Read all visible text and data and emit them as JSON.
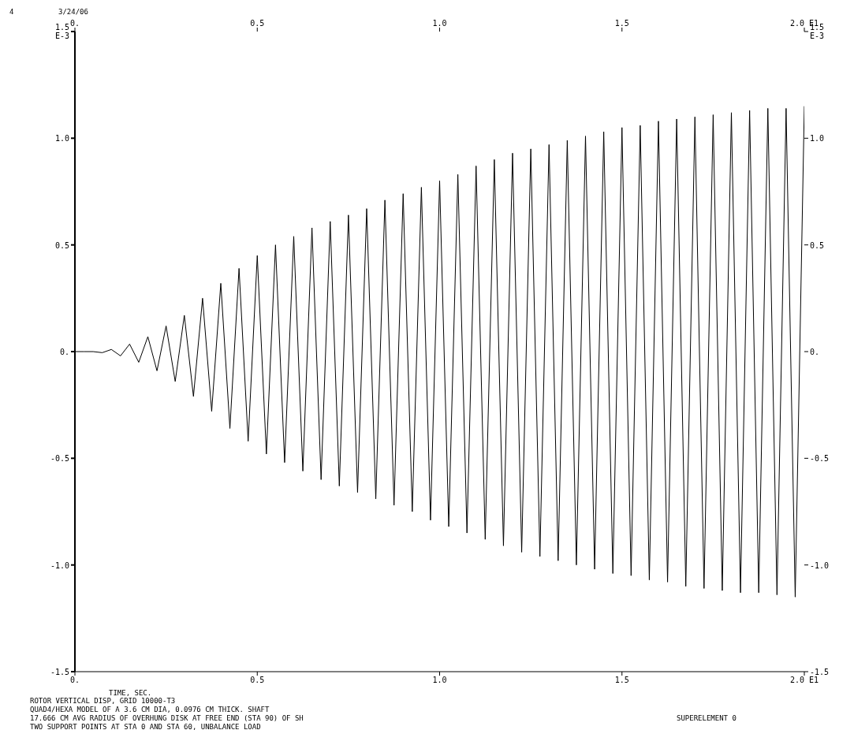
{
  "chart_data": {
    "type": "line",
    "title": "ROTOR VERTICAL DISP, GRID 10000-T3",
    "xlabel": "TIME, SEC.",
    "annotations": [
      "4",
      "3/24/06",
      "QUAD4/HEXA MODEL OF A 3.6 CM DIA, 0.0976 CM THICK. SHAFT",
      "17.666 CM AVG RADIUS OF OVERHUNG DISK AT FREE END (STA 90) OF SH",
      "TWO SUPPORT POINTS AT STA 0 AND STA 60, UNBALANCE LOAD",
      "SUPERELEMENT 0"
    ],
    "x": [
      0,
      0.025,
      0.05,
      0.075,
      0.1,
      0.125,
      0.15,
      0.175,
      0.2,
      0.225,
      0.25,
      0.275,
      0.3,
      0.325,
      0.35,
      0.375,
      0.4,
      0.425,
      0.45,
      0.475,
      0.5,
      0.525,
      0.55,
      0.575,
      0.6,
      0.625,
      0.65,
      0.675,
      0.7,
      0.725,
      0.75,
      0.775,
      0.8,
      0.825,
      0.85,
      0.875,
      0.9,
      0.925,
      0.95,
      0.975,
      1.0,
      1.025,
      1.05,
      1.075,
      1.1,
      1.125,
      1.15,
      1.175,
      1.2,
      1.225,
      1.25,
      1.275,
      1.3,
      1.325,
      1.35,
      1.375,
      1.4,
      1.425,
      1.45,
      1.475,
      1.5,
      1.525,
      1.55,
      1.575,
      1.6,
      1.625,
      1.65,
      1.675,
      1.7,
      1.725,
      1.75,
      1.775,
      1.8,
      1.825,
      1.85,
      1.875,
      1.9,
      1.925,
      1.95,
      1.975,
      2.0
    ],
    "series": [
      {
        "color": "#000000",
        "values": [
          0,
          0,
          0,
          -0.005,
          0.01,
          -0.02,
          0.035,
          -0.05,
          0.07,
          -0.09,
          0.12,
          -0.14,
          0.17,
          -0.21,
          0.25,
          -0.28,
          0.32,
          -0.36,
          0.39,
          -0.42,
          0.45,
          -0.48,
          0.5,
          -0.52,
          0.54,
          -0.56,
          0.58,
          -0.6,
          0.61,
          -0.63,
          0.64,
          -0.66,
          0.67,
          -0.69,
          0.71,
          -0.72,
          0.74,
          -0.75,
          0.77,
          -0.79,
          0.8,
          -0.82,
          0.83,
          -0.85,
          0.87,
          -0.88,
          0.9,
          -0.91,
          0.93,
          -0.94,
          0.95,
          -0.96,
          0.97,
          -0.98,
          0.99,
          -1.0,
          1.01,
          -1.02,
          1.03,
          -1.04,
          1.05,
          -1.05,
          1.06,
          -1.07,
          1.08,
          -1.08,
          1.09,
          -1.1,
          1.1,
          -1.11,
          1.11,
          -1.12,
          1.12,
          -1.13,
          1.13,
          -1.13,
          1.14,
          -1.14,
          1.14,
          -1.15,
          1.15
        ]
      }
    ],
    "xlim": [
      0,
      2.0
    ],
    "xticks": [
      {
        "value": 0,
        "label": "0."
      },
      {
        "value": 0.5,
        "label": "0.5"
      },
      {
        "value": 1.0,
        "label": "1.0"
      },
      {
        "value": 1.5,
        "label": "1.5"
      },
      {
        "value": 2.0,
        "label": "2.0 E1"
      }
    ],
    "x2lim": [
      0,
      2.0
    ],
    "x2ticks": [
      {
        "value": 0,
        "label": "0."
      },
      {
        "value": 0.5,
        "label": "0.5"
      },
      {
        "value": 1.0,
        "label": "1.0"
      },
      {
        "value": 1.5,
        "label": "1.5"
      },
      {
        "value": 2.0,
        "label": "2.0 E1"
      }
    ],
    "ylim": [
      -1.5,
      1.5
    ],
    "yticks": [
      {
        "value": -1.5,
        "label": "-1.5"
      },
      {
        "value": -1.0,
        "label": "-1.0"
      },
      {
        "value": -0.5,
        "label": "-0.5"
      },
      {
        "value": 0,
        "label": "0."
      },
      {
        "value": 0.5,
        "label": "0.5"
      },
      {
        "value": 1.0,
        "label": "1.0"
      },
      {
        "value": 1.5,
        "label": "1.5 E-3"
      }
    ],
    "y2lim": [
      -1.5,
      1.5
    ],
    "y2ticks": [
      {
        "value": -1.5,
        "label": "-1.5"
      },
      {
        "value": -1.0,
        "label": "-1.0"
      },
      {
        "value": -0.5,
        "label": "-0.5"
      },
      {
        "value": 0,
        "label": "0."
      },
      {
        "value": 0.5,
        "label": "0.5"
      },
      {
        "value": 1.0,
        "label": "1.0"
      },
      {
        "value": 1.5,
        "label": "1.5 E-3"
      }
    ],
    "grid": false,
    "legend": false,
    "marker": "none",
    "line_style": "solid"
  }
}
